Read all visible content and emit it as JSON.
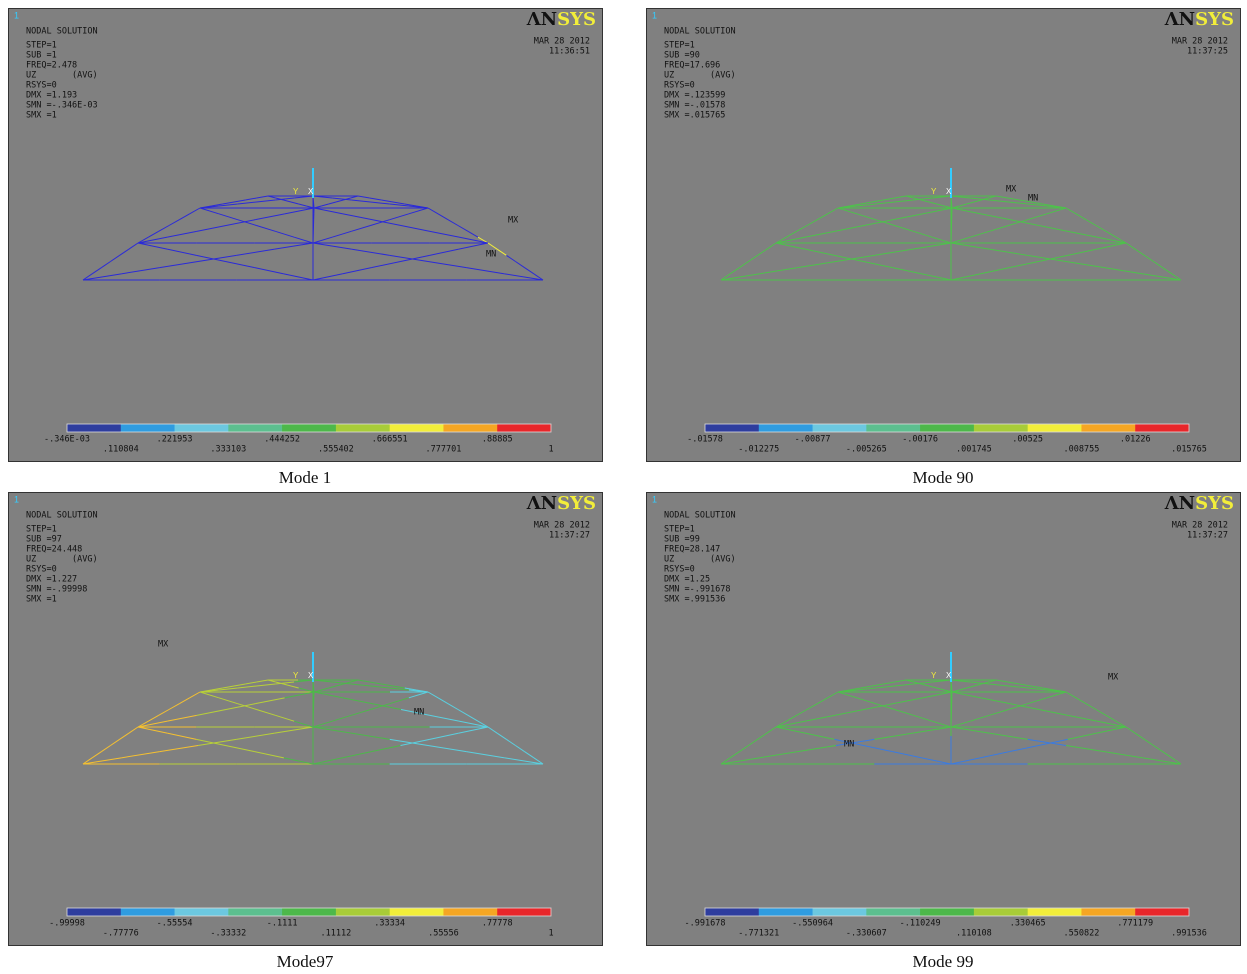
{
  "panels": [
    {
      "corner": "1",
      "logo_a": "ΛN",
      "logo_b": "SYS",
      "info": [
        "NODAL SOLUTION",
        "STEP=1",
        "SUB =1",
        "FREQ=2.478",
        "UZ       (AVG)",
        "RSYS=0",
        "DMX =1.193",
        "SMN =-.346E-03",
        "SMX =1"
      ],
      "date": "MAR 28 2012",
      "time": "11:36:51",
      "triad": [
        "Y",
        "X"
      ],
      "mx": "MX",
      "mn": "MN",
      "legend": [
        "-.346E-03",
        ".110804",
        ".221953",
        ".333103",
        ".444252",
        ".555402",
        ".666551",
        ".777701",
        ".88885",
        "1"
      ],
      "caption": "Mode 1"
    },
    {
      "corner": "1",
      "logo_a": "ΛN",
      "logo_b": "SYS",
      "info": [
        "NODAL SOLUTION",
        "STEP=1",
        "SUB =90",
        "FREQ=17.696",
        "UZ       (AVG)",
        "RSYS=0",
        "DMX =.123599",
        "SMN =-.01578",
        "SMX =.015765"
      ],
      "date": "MAR 28 2012",
      "time": "11:37:25",
      "triad": [
        "Y",
        "X"
      ],
      "mx": "MX",
      "mn": "MN",
      "legend": [
        "-.01578",
        "-.012275",
        "-.00877",
        "-.005265",
        "-.00176",
        ".001745",
        ".00525",
        ".008755",
        ".01226",
        ".015765"
      ],
      "caption": "Mode 90"
    },
    {
      "corner": "1",
      "logo_a": "ΛN",
      "logo_b": "SYS",
      "info": [
        "NODAL SOLUTION",
        "STEP=1",
        "SUB =97",
        "FREQ=24.448",
        "UZ       (AVG)",
        "RSYS=0",
        "DMX =1.227",
        "SMN =-.99998",
        "SMX =1"
      ],
      "date": "MAR 28 2012",
      "time": "11:37:27",
      "triad": [
        "Y",
        "X"
      ],
      "mx": "MX",
      "mn": "MN",
      "legend": [
        "-.99998",
        "-.77776",
        "-.55554",
        "-.33332",
        "-.1111",
        ".11112",
        ".33334",
        ".55556",
        ".77778",
        "1"
      ],
      "caption": "Mode97"
    },
    {
      "corner": "1",
      "logo_a": "ΛN",
      "logo_b": "SYS",
      "info": [
        "NODAL SOLUTION",
        "STEP=1",
        "SUB =99",
        "FREQ=28.147",
        "UZ       (AVG)",
        "RSYS=0",
        "DMX =1.25",
        "SMN =-.991678",
        "SMX =.991536"
      ],
      "date": "MAR 28 2012",
      "time": "11:37:27",
      "triad": [
        "Y",
        "X"
      ],
      "mx": "MX",
      "mn": "MN",
      "legend": [
        "-.991678",
        "-.771321",
        "-.550964",
        "-.330607",
        "-.110249",
        ".110108",
        ".330465",
        ".550822",
        ".771179",
        ".991536"
      ],
      "caption": "Mode 99"
    }
  ]
}
